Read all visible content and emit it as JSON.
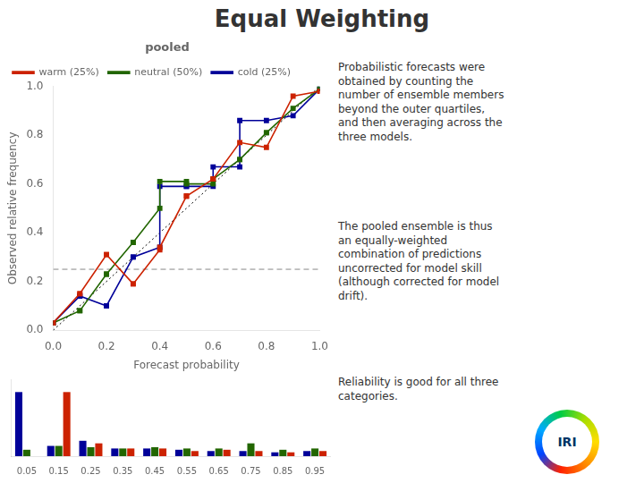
{
  "chart_data": [
    {
      "type": "line",
      "title": "Equal Weighting",
      "subtitle": "pooled",
      "x_label": "Forecast probability",
      "y_label": "Observed relative frequency",
      "series": [
        {
          "name": "warm (25%)",
          "color": "#cc2200",
          "marker": "square",
          "x": [
            0.0,
            0.1,
            0.1,
            0.2,
            0.2,
            0.3,
            0.3,
            0.4,
            0.4,
            0.5,
            0.5,
            0.6,
            0.6,
            0.7,
            0.8,
            0.9,
            1.0
          ],
          "values": [
            0.03,
            0.15,
            0.15,
            0.31,
            0.31,
            0.19,
            0.19,
            0.33,
            0.34,
            0.55,
            0.55,
            0.62,
            0.62,
            0.77,
            0.75,
            0.96,
            0.98
          ]
        },
        {
          "name": "neutral (50%)",
          "color": "#226600",
          "marker": "square",
          "x": [
            0.0,
            0.1,
            0.1,
            0.2,
            0.2,
            0.3,
            0.3,
            0.4,
            0.4,
            0.5,
            0.5,
            0.6,
            0.6,
            0.7,
            0.7,
            0.8,
            0.8,
            0.9,
            1.0
          ],
          "values": [
            0.03,
            0.08,
            0.08,
            0.23,
            0.23,
            0.36,
            0.36,
            0.5,
            0.61,
            0.61,
            0.6,
            0.6,
            0.62,
            0.7,
            0.7,
            0.81,
            0.81,
            0.91,
            0.99
          ]
        },
        {
          "name": "cold (25%)",
          "color": "#000099",
          "marker": "square",
          "x": [
            0.0,
            0.1,
            0.1,
            0.2,
            0.2,
            0.3,
            0.3,
            0.4,
            0.4,
            0.5,
            0.5,
            0.6,
            0.6,
            0.7,
            0.7,
            0.8,
            0.9,
            1.0
          ],
          "values": [
            0.03,
            0.14,
            0.14,
            0.1,
            0.1,
            0.3,
            0.3,
            0.34,
            0.59,
            0.59,
            0.59,
            0.59,
            0.67,
            0.67,
            0.86,
            0.86,
            0.88,
            0.99
          ]
        }
      ],
      "diagonal": {
        "x": [
          0,
          1
        ],
        "values": [
          0,
          1
        ],
        "color": "black",
        "line_style": "dotted"
      },
      "hline": {
        "value": 0.25,
        "color": "#888888",
        "line_style": "dashed"
      },
      "xlim": [
        0.0,
        1.0
      ],
      "ylim": [
        0.0,
        1.0
      ],
      "xticks": [
        {
          "value": 0.0,
          "label": "0.0"
        },
        0.2,
        0.4,
        0.6,
        0.8,
        {
          "value": 1.0,
          "label": "1.0"
        }
      ],
      "yticks": [
        {
          "value": 0.0,
          "label": "0.0"
        },
        0.2,
        0.4,
        0.6,
        0.8,
        {
          "value": 1.0,
          "label": "1.0"
        }
      ],
      "grid": false,
      "legend": "upper left",
      "annotations": [
        "Probabilistic forecasts were\nobtained by counting the\nnumber of ensemble members\nbeyond the outer quartiles,\nand then averaging across the\nthree models.",
        "The pooled ensemble is thus\nan equally-weighted\ncombination of predictions\nuncorrected for model skill\n(although corrected for model\ndrift).",
        "Reliability is good for all three\ncategories."
      ],
      "logo": "IRI"
    },
    {
      "type": "bar",
      "categories": [
        "0.05",
        "0.15",
        "0.25",
        "0.35",
        "0.45",
        "0.55",
        "0.65",
        "0.75",
        "0.85",
        "0.95"
      ],
      "series": [
        {
          "color": "#000099",
          "values": [
            0.5,
            0.08,
            0.12,
            0.06,
            0.06,
            0.05,
            0.04,
            0.04,
            0.03,
            0.04
          ]
        },
        {
          "color": "#226600",
          "values": [
            0.05,
            0.08,
            0.07,
            0.06,
            0.07,
            0.06,
            0.06,
            0.1,
            0.05,
            0.06
          ]
        },
        {
          "color": "#cc2200",
          "values": [
            0.0,
            0.5,
            0.1,
            0.06,
            0.06,
            0.04,
            0.05,
            0.04,
            0.03,
            0.04
          ]
        }
      ],
      "ylim": [
        0,
        0.6
      ],
      "grid": false,
      "tick_labels": "x"
    }
  ]
}
